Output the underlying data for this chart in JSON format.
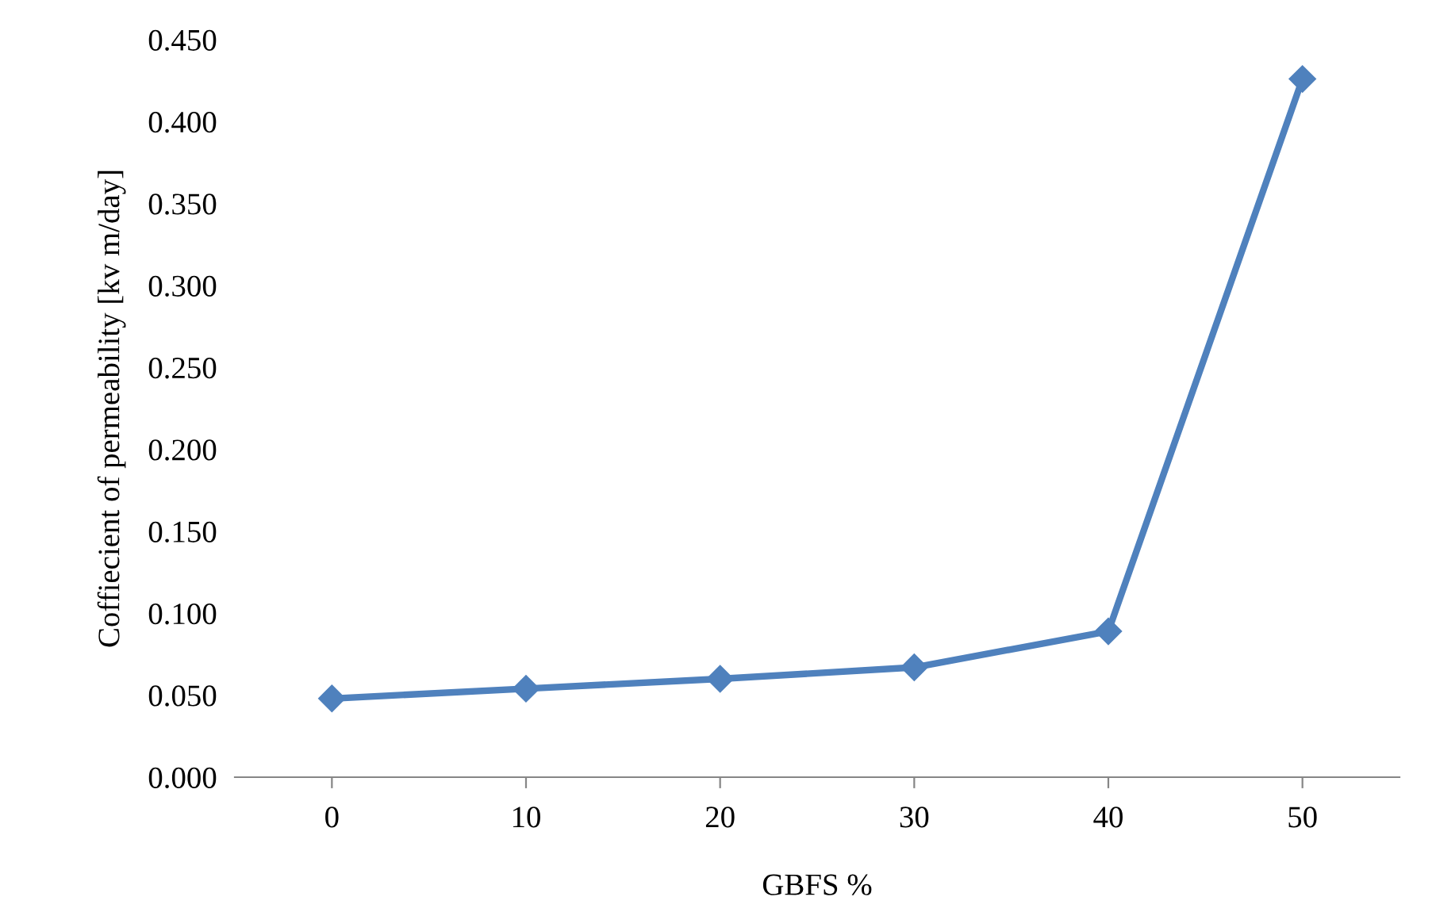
{
  "chart_data": {
    "type": "line",
    "xlabel": "GBFS %",
    "ylabel": "Coffiecient of permeability [kv m/day]",
    "categories": [
      "0",
      "10",
      "20",
      "30",
      "40",
      "50"
    ],
    "series": [
      {
        "color": "#4f81bd",
        "values": [
          0.048,
          0.054,
          0.06,
          0.067,
          0.089,
          0.426
        ]
      }
    ],
    "ylim": [
      0,
      0.45
    ],
    "yticks": [
      {
        "value": 0,
        "label": "0.000"
      },
      {
        "value": 0.05,
        "label": "0.050"
      },
      {
        "value": 0.1,
        "label": "0.100"
      },
      {
        "value": 0.15,
        "label": "0.150"
      },
      {
        "value": 0.2,
        "label": "0.200"
      },
      {
        "value": 0.25,
        "label": "0.250"
      },
      {
        "value": 0.3,
        "label": "0.300"
      },
      {
        "value": 0.35,
        "label": "0.350"
      },
      {
        "value": 0.4,
        "label": "0.400"
      },
      {
        "value": 0.45,
        "label": "0.450"
      }
    ],
    "grid": false,
    "marker": "diamond",
    "line_style": "solid"
  }
}
